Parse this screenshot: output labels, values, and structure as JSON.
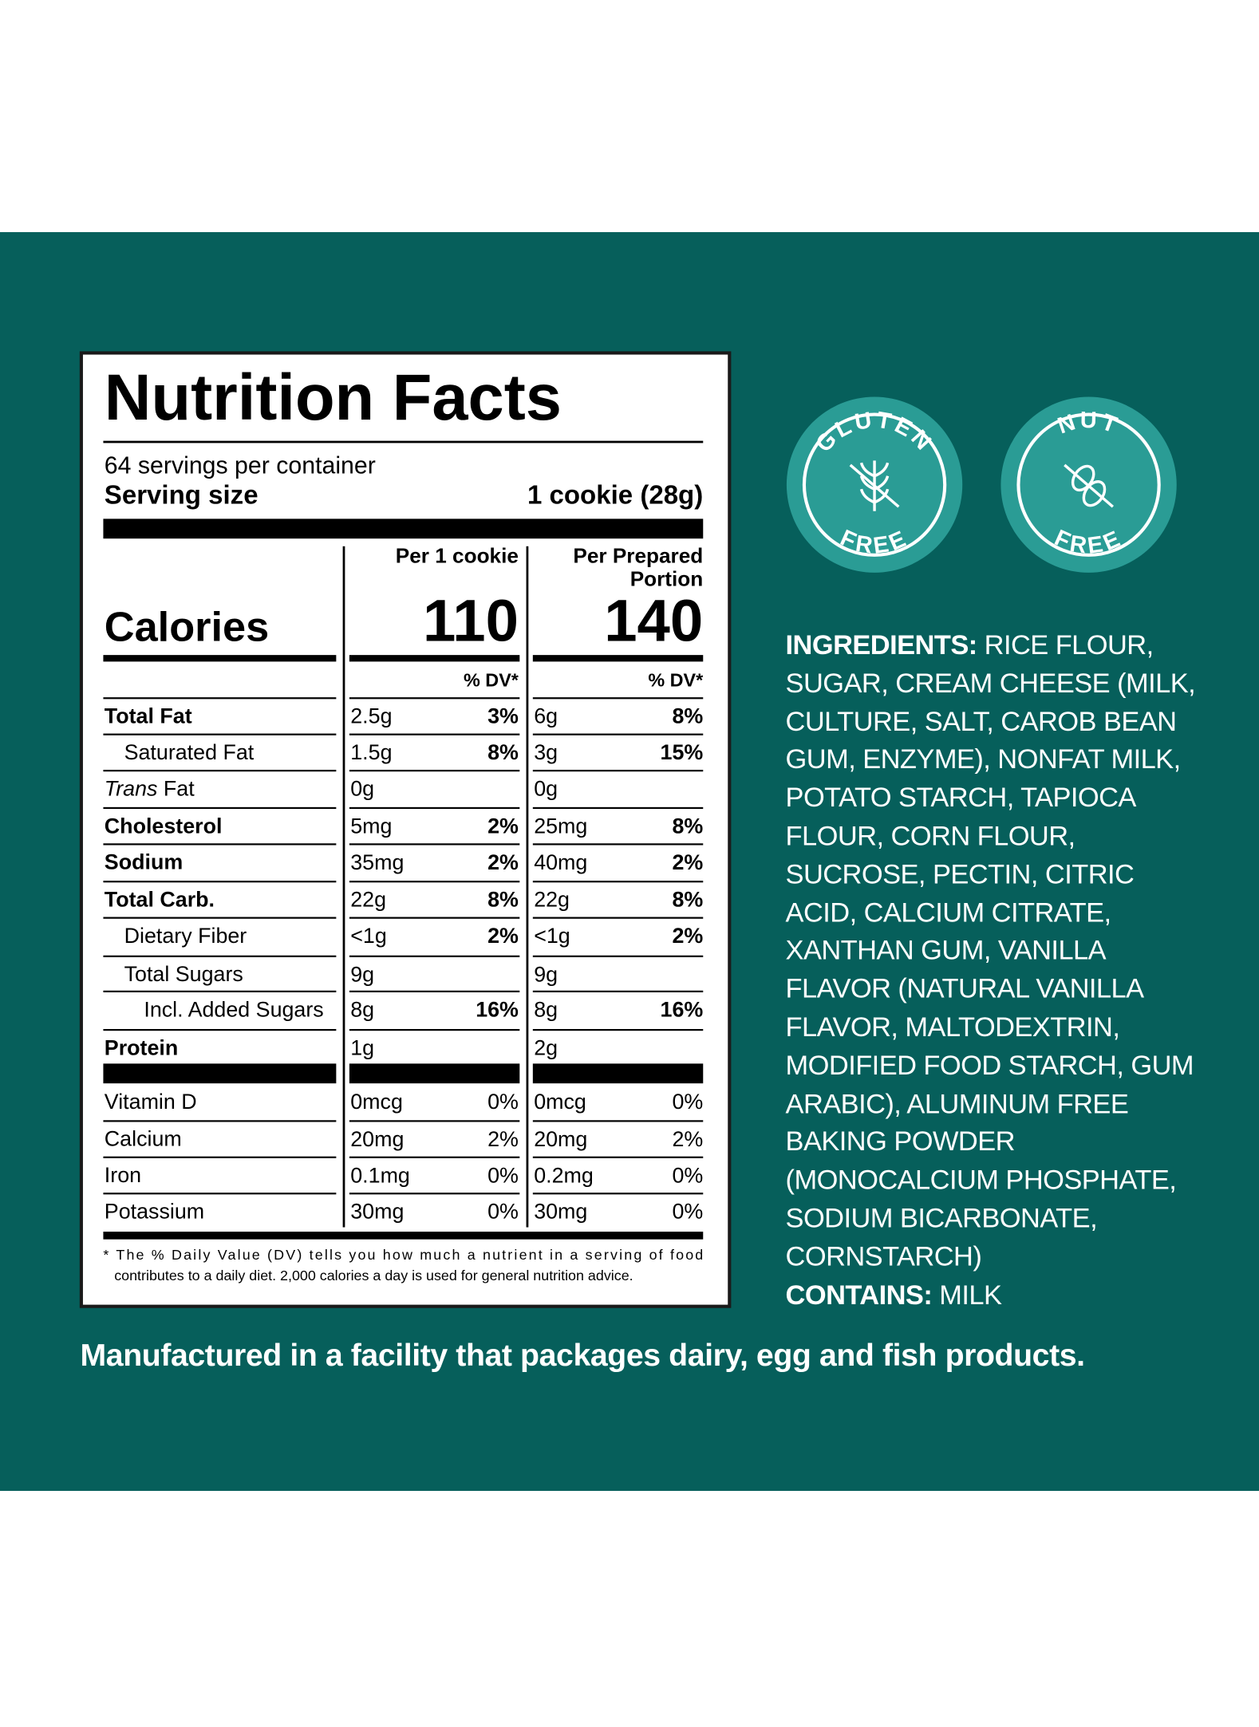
{
  "nutrition_facts": {
    "title": "Nutrition Facts",
    "servings_per_container": "64 servings per container",
    "serving_size_label": "Serving size",
    "serving_size_value": "1 cookie (28g)",
    "column_headers": [
      "Per 1 cookie",
      "Per Prepared",
      "Portion"
    ],
    "calories_label": "Calories",
    "calories": [
      "110",
      "140"
    ],
    "dv_header": "% DV*",
    "rows": [
      {
        "nutrient": "Total Fat",
        "per_cookie": "2.5g",
        "per_cookie_dv": "3%",
        "per_portion": "6g",
        "per_portion_dv": "8%"
      },
      {
        "nutrient": "Saturated Fat",
        "per_cookie": "1.5g",
        "per_cookie_dv": "8%",
        "per_portion": "3g",
        "per_portion_dv": "15%"
      },
      {
        "nutrient_italic": "Trans",
        "nutrient": "Fat",
        "per_cookie": "0g",
        "per_cookie_dv": null,
        "per_portion": "0g",
        "per_portion_dv": null
      },
      {
        "nutrient": "Cholesterol",
        "per_cookie": "5mg",
        "per_cookie_dv": "2%",
        "per_portion": "25mg",
        "per_portion_dv": "8%"
      },
      {
        "nutrient": "Sodium",
        "per_cookie": "35mg",
        "per_cookie_dv": "2%",
        "per_portion": "40mg",
        "per_portion_dv": "2%"
      },
      {
        "nutrient": "Total Carb.",
        "per_cookie": "22g",
        "per_cookie_dv": "8%",
        "per_portion": "22g",
        "per_portion_dv": "8%"
      },
      {
        "nutrient": "Dietary Fiber",
        "per_cookie": "<1g",
        "per_cookie_dv": "2%",
        "per_portion": "<1g",
        "per_portion_dv": "2%"
      },
      {
        "nutrient": "Total Sugars",
        "per_cookie": "9g",
        "per_cookie_dv": null,
        "per_portion": "9g",
        "per_portion_dv": null
      },
      {
        "nutrient": "Incl. Added Sugars",
        "per_cookie": "8g",
        "per_cookie_dv": "16%",
        "per_portion": "8g",
        "per_portion_dv": "16%"
      },
      {
        "nutrient": "Protein",
        "per_cookie": "1g",
        "per_cookie_dv": null,
        "per_portion": "2g",
        "per_portion_dv": null
      },
      {
        "nutrient": "Vitamin D",
        "per_cookie": "0mcg",
        "per_cookie_dv": "0%",
        "per_portion": "0mcg",
        "per_portion_dv": "0%"
      },
      {
        "nutrient": "Calcium",
        "per_cookie": "20mg",
        "per_cookie_dv": "2%",
        "per_portion": "20mg",
        "per_portion_dv": "2%"
      },
      {
        "nutrient": "Iron",
        "per_cookie": "0.1mg",
        "per_cookie_dv": "0%",
        "per_portion": "0.2mg",
        "per_portion_dv": "0%"
      },
      {
        "nutrient": "Potassium",
        "per_cookie": "30mg",
        "per_cookie_dv": "0%",
        "per_portion": "30mg",
        "per_portion_dv": "0%"
      }
    ],
    "footnote": [
      "* The % Daily Value (DV) tells you how much a nutrient in a serving of food",
      "contributes to a daily diet. 2,000 calories a day is used for general nutrition advice."
    ]
  },
  "badges": [
    {
      "top": "GLUTEN",
      "bottom": "FREE"
    },
    {
      "top": "NUT",
      "bottom": "FREE"
    }
  ],
  "ingredients": {
    "label": "INGREDIENTS:",
    "text": "RICE FLOUR, SUGAR, CREAM CHEESE (MILK, CULTURE, SALT, CAROB BEAN GUM, ENZYME), NONFAT MILK, POTATO STARCH, TAPIOCA FLOUR, CORN FLOUR, SUCROSE, PECTIN, CITRIC ACID, CALCIUM CITRATE, XANTHAN GUM, VANILLA FLAVOR (NATURAL VANILLA FLAVOR, MALTODEXTRIN, MODIFIED FOOD STARCH, GUM ARABIC), ALUMINUM FREE BAKING POWDER (MONOCALCIUM PHOSPHATE, SODIUM BICARBONATE, CORNSTARCH)"
  },
  "contains": {
    "label": "CONTAINS:",
    "text": "MILK"
  },
  "facility_note": "Manufactured in a facility that packages dairy, egg and fish products."
}
